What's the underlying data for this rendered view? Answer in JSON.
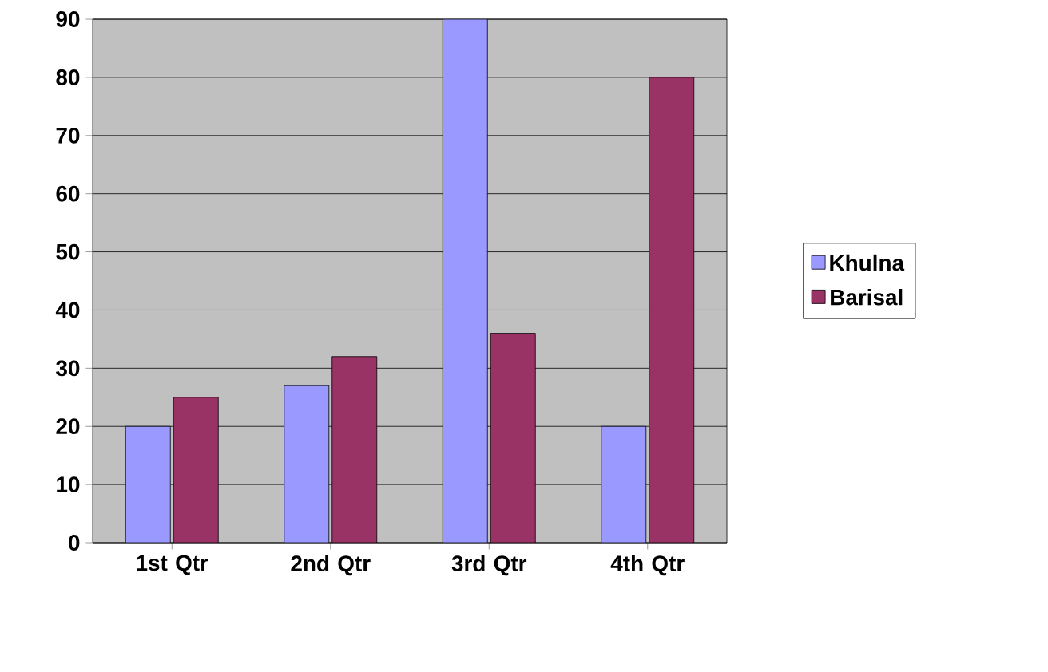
{
  "chart_data": {
    "type": "bar",
    "categories": [
      "1st Qtr",
      "2nd Qtr",
      "3rd Qtr",
      "4th Qtr"
    ],
    "series": [
      {
        "name": "Khulna",
        "color": "#9999ff",
        "values": [
          20,
          27,
          90,
          20
        ]
      },
      {
        "name": "Barisal",
        "color": "#993366",
        "values": [
          25,
          32,
          36,
          80
        ]
      }
    ],
    "ylim": [
      0,
      90
    ],
    "yticks": [
      0,
      10,
      20,
      30,
      40,
      50,
      60,
      70,
      80,
      90
    ],
    "grid": "y",
    "legend": "right"
  }
}
